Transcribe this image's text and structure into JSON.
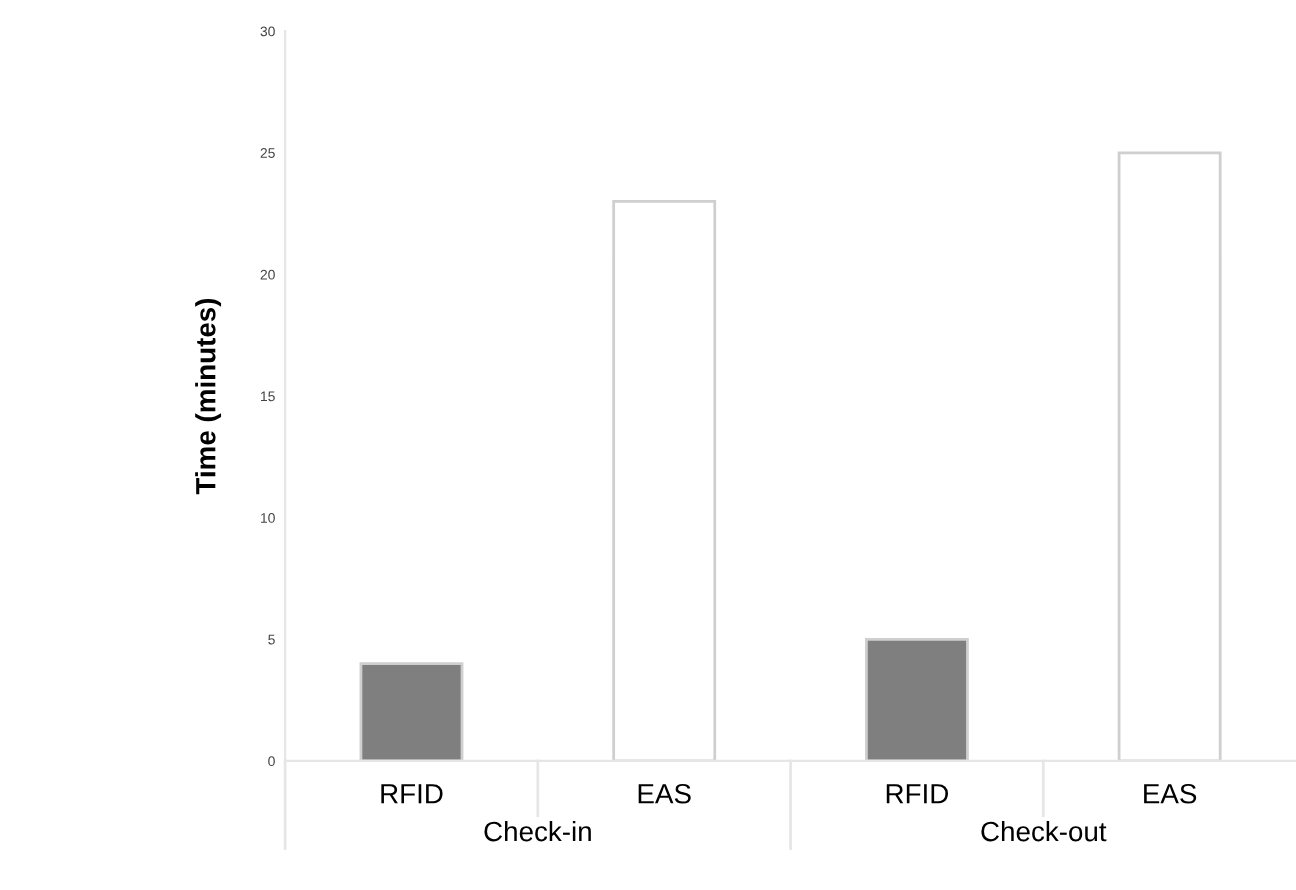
{
  "chart_data": {
    "type": "bar",
    "ylabel": "Time (minutes)",
    "categories": [
      "RFID",
      "EAS",
      "RFID",
      "EAS"
    ],
    "values": [
      4,
      23,
      5,
      25
    ],
    "colors": [
      "#7f7f7f",
      "#ffffff",
      "#7f7f7f",
      "#ffffff"
    ],
    "ylim": [
      0,
      30
    ],
    "yticks": [
      0,
      5,
      10,
      15,
      20,
      25,
      30
    ],
    "annotations": [
      "Check-in",
      "Check-out"
    ],
    "grid": false
  }
}
